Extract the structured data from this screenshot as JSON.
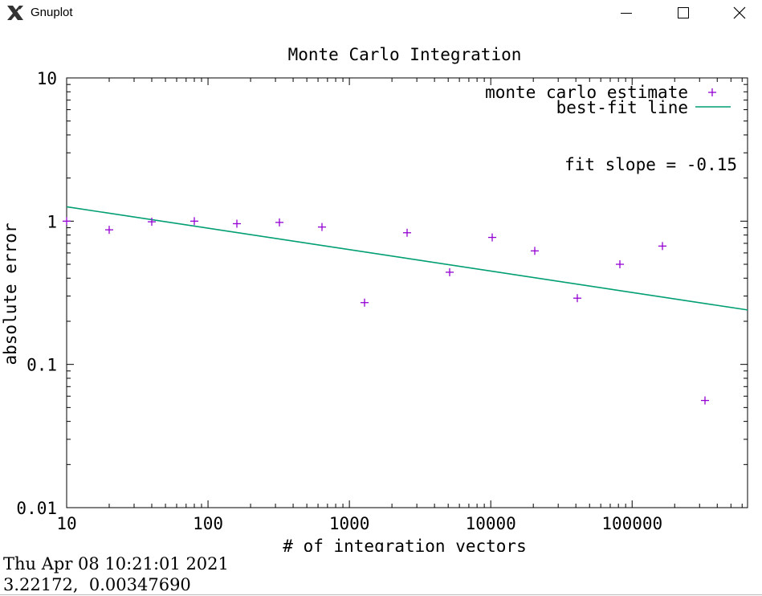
{
  "window": {
    "title": "Gnuplot",
    "icon": "x-window-icon",
    "controls": [
      "minimize-icon",
      "maximize-icon",
      "close-icon"
    ]
  },
  "chart_data": {
    "type": "scatter",
    "title": "Monte Carlo Integration",
    "xlabel": "# of integration vectors",
    "ylabel": "absolute error",
    "xscale": "log",
    "yscale": "log",
    "xlim": [
      10,
      655360
    ],
    "ylim": [
      0.01,
      10
    ],
    "x_ticks": [
      10,
      100,
      1000,
      10000,
      100000
    ],
    "x_tick_labels": [
      "10",
      "100",
      "1000",
      "10000",
      "100000"
    ],
    "y_ticks": [
      0.01,
      0.1,
      1,
      10
    ],
    "y_tick_labels": [
      "0.01",
      "0.1",
      "1",
      "10"
    ],
    "legend_position": "top-right",
    "series": [
      {
        "name": "monte carlo estimate",
        "marker": "plus",
        "color": "#9400d3",
        "x": [
          10,
          20,
          40,
          80,
          160,
          320,
          640,
          1280,
          2560,
          5120,
          10240,
          20480,
          40960,
          81920,
          163840,
          327680
        ],
        "y": [
          1.0,
          0.87,
          0.99,
          1.0,
          0.96,
          0.98,
          0.91,
          0.27,
          0.83,
          0.44,
          0.77,
          0.62,
          0.29,
          0.5,
          0.67,
          0.056
        ]
      },
      {
        "name": "best-fit line",
        "style": "line",
        "color": "#009e73",
        "x": [
          10,
          655360
        ],
        "y": [
          1.26,
          0.24
        ]
      }
    ],
    "annotations": [
      "fit slope = -0.15"
    ]
  },
  "status": {
    "timestamp": "Thu Apr 08 10:21:01 2021",
    "coordinates": "3.22172,  0.00347690"
  }
}
